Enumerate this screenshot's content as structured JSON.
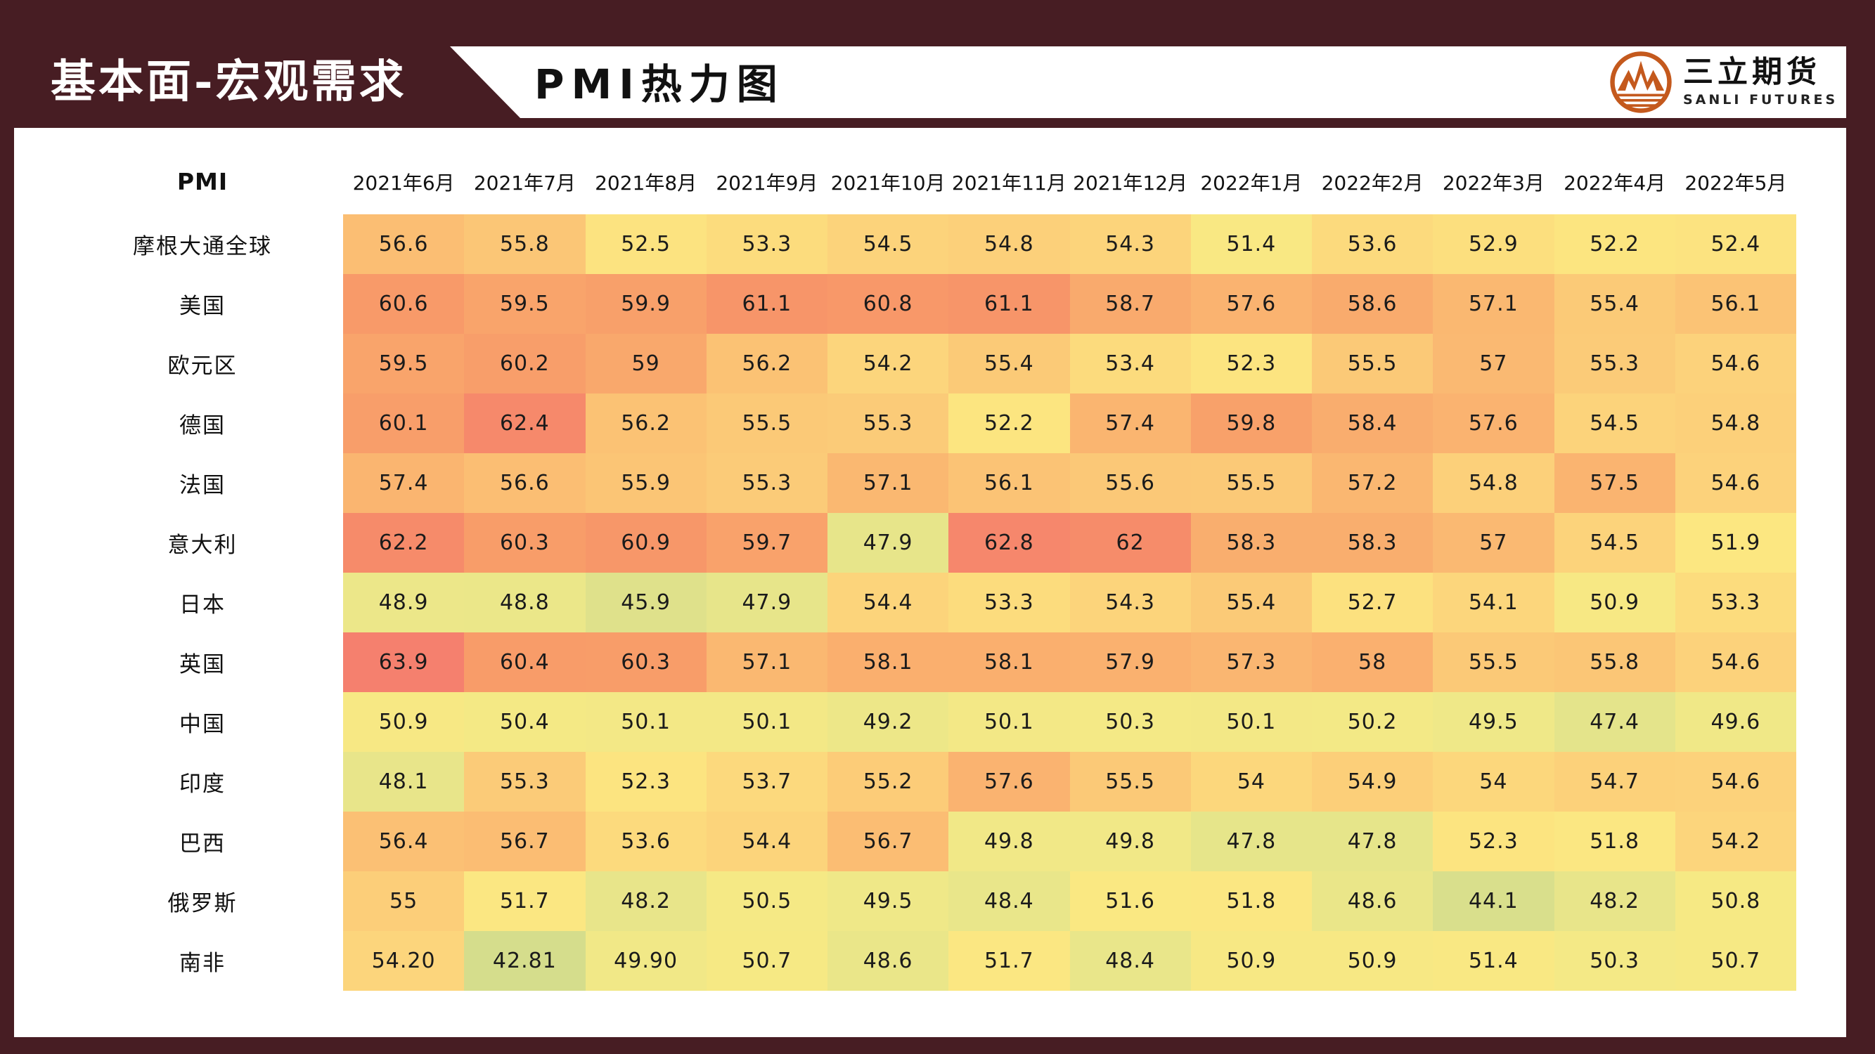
{
  "header": {
    "section_title": "基本面-宏观需求",
    "page_title": "PMI热力图",
    "logo": {
      "name_cn": "三立期货",
      "name_en": "SANLI FUTURES",
      "icon": "mountain-circle-icon"
    }
  },
  "colors": {
    "frame_maroon": "#471d23",
    "logo_orange": "#c4591d",
    "text_black": "#111111"
  },
  "chart_data": {
    "type": "heatmap",
    "title": "PMI热力图",
    "corner_label": "PMI",
    "legend_position": "none",
    "grid": false,
    "columns": [
      "2021年6月",
      "2021年7月",
      "2021年8月",
      "2021年9月",
      "2021年10月",
      "2021年11月",
      "2021年12月",
      "2022年1月",
      "2022年2月",
      "2022年3月",
      "2022年4月",
      "2022年5月"
    ],
    "rows": [
      {
        "label": "摩根大通全球",
        "values": [
          "56.6",
          "55.8",
          "52.5",
          "53.3",
          "54.5",
          "54.8",
          "54.3",
          "51.4",
          "53.6",
          "52.9",
          "52.2",
          "52.4"
        ]
      },
      {
        "label": "美国",
        "values": [
          "60.6",
          "59.5",
          "59.9",
          "61.1",
          "60.8",
          "61.1",
          "58.7",
          "57.6",
          "58.6",
          "57.1",
          "55.4",
          "56.1"
        ]
      },
      {
        "label": "欧元区",
        "values": [
          "59.5",
          "60.2",
          "59",
          "56.2",
          "54.2",
          "55.4",
          "53.4",
          "52.3",
          "55.5",
          "57",
          "55.3",
          "54.6"
        ]
      },
      {
        "label": "德国",
        "values": [
          "60.1",
          "62.4",
          "56.2",
          "55.5",
          "55.3",
          "52.2",
          "57.4",
          "59.8",
          "58.4",
          "57.6",
          "54.5",
          "54.8"
        ]
      },
      {
        "label": "法国",
        "values": [
          "57.4",
          "56.6",
          "55.9",
          "55.3",
          "57.1",
          "56.1",
          "55.6",
          "55.5",
          "57.2",
          "54.8",
          "57.5",
          "54.6"
        ]
      },
      {
        "label": "意大利",
        "values": [
          "62.2",
          "60.3",
          "60.9",
          "59.7",
          "47.9",
          "62.8",
          "62",
          "58.3",
          "58.3",
          "57",
          "54.5",
          "51.9"
        ]
      },
      {
        "label": "日本",
        "values": [
          "48.9",
          "48.8",
          "45.9",
          "47.9",
          "54.4",
          "53.3",
          "54.3",
          "55.4",
          "52.7",
          "54.1",
          "50.9",
          "53.3"
        ]
      },
      {
        "label": "英国",
        "values": [
          "63.9",
          "60.4",
          "60.3",
          "57.1",
          "58.1",
          "58.1",
          "57.9",
          "57.3",
          "58",
          "55.5",
          "55.8",
          "54.6"
        ]
      },
      {
        "label": "中国",
        "values": [
          "50.9",
          "50.4",
          "50.1",
          "50.1",
          "49.2",
          "50.1",
          "50.3",
          "50.1",
          "50.2",
          "49.5",
          "47.4",
          "49.6"
        ]
      },
      {
        "label": "印度",
        "values": [
          "48.1",
          "55.3",
          "52.3",
          "53.7",
          "55.2",
          "57.6",
          "55.5",
          "54",
          "54.9",
          "54",
          "54.7",
          "54.6"
        ]
      },
      {
        "label": "巴西",
        "values": [
          "56.4",
          "56.7",
          "53.6",
          "54.4",
          "56.7",
          "49.8",
          "49.8",
          "47.8",
          "47.8",
          "52.3",
          "51.8",
          "54.2"
        ]
      },
      {
        "label": "俄罗斯",
        "values": [
          "55",
          "51.7",
          "48.2",
          "50.5",
          "49.5",
          "48.4",
          "51.6",
          "51.8",
          "48.6",
          "44.1",
          "48.2",
          "50.8"
        ]
      },
      {
        "label": "南非",
        "values": [
          "54.20",
          "42.81",
          "49.90",
          "50.7",
          "48.6",
          "51.7",
          "48.4",
          "50.9",
          "50.9",
          "51.4",
          "50.3",
          "50.7"
        ]
      }
    ],
    "value_range": [
      42.81,
      63.9
    ],
    "color_scale": {
      "description": "green-yellow-orange-red, low to high",
      "stops": [
        [
          42.8,
          [
            213,
            221,
            140
          ]
        ],
        [
          47.0,
          [
            226,
            227,
            139
          ]
        ],
        [
          49.0,
          [
            236,
            231,
            137
          ]
        ],
        [
          50.5,
          [
            245,
            233,
            133
          ]
        ],
        [
          52.0,
          [
            252,
            231,
            129
          ]
        ],
        [
          53.0,
          [
            252,
            222,
            126
          ]
        ],
        [
          54.5,
          [
            252,
            211,
            123
          ]
        ],
        [
          56.0,
          [
            251,
            196,
            117
          ]
        ],
        [
          57.5,
          [
            250,
            180,
            112
          ]
        ],
        [
          59.0,
          [
            249,
            168,
            108
          ]
        ],
        [
          60.5,
          [
            248,
            155,
            105
          ]
        ],
        [
          62.0,
          [
            246,
            140,
            106
          ]
        ],
        [
          63.9,
          [
            245,
            128,
            110
          ]
        ]
      ]
    }
  }
}
